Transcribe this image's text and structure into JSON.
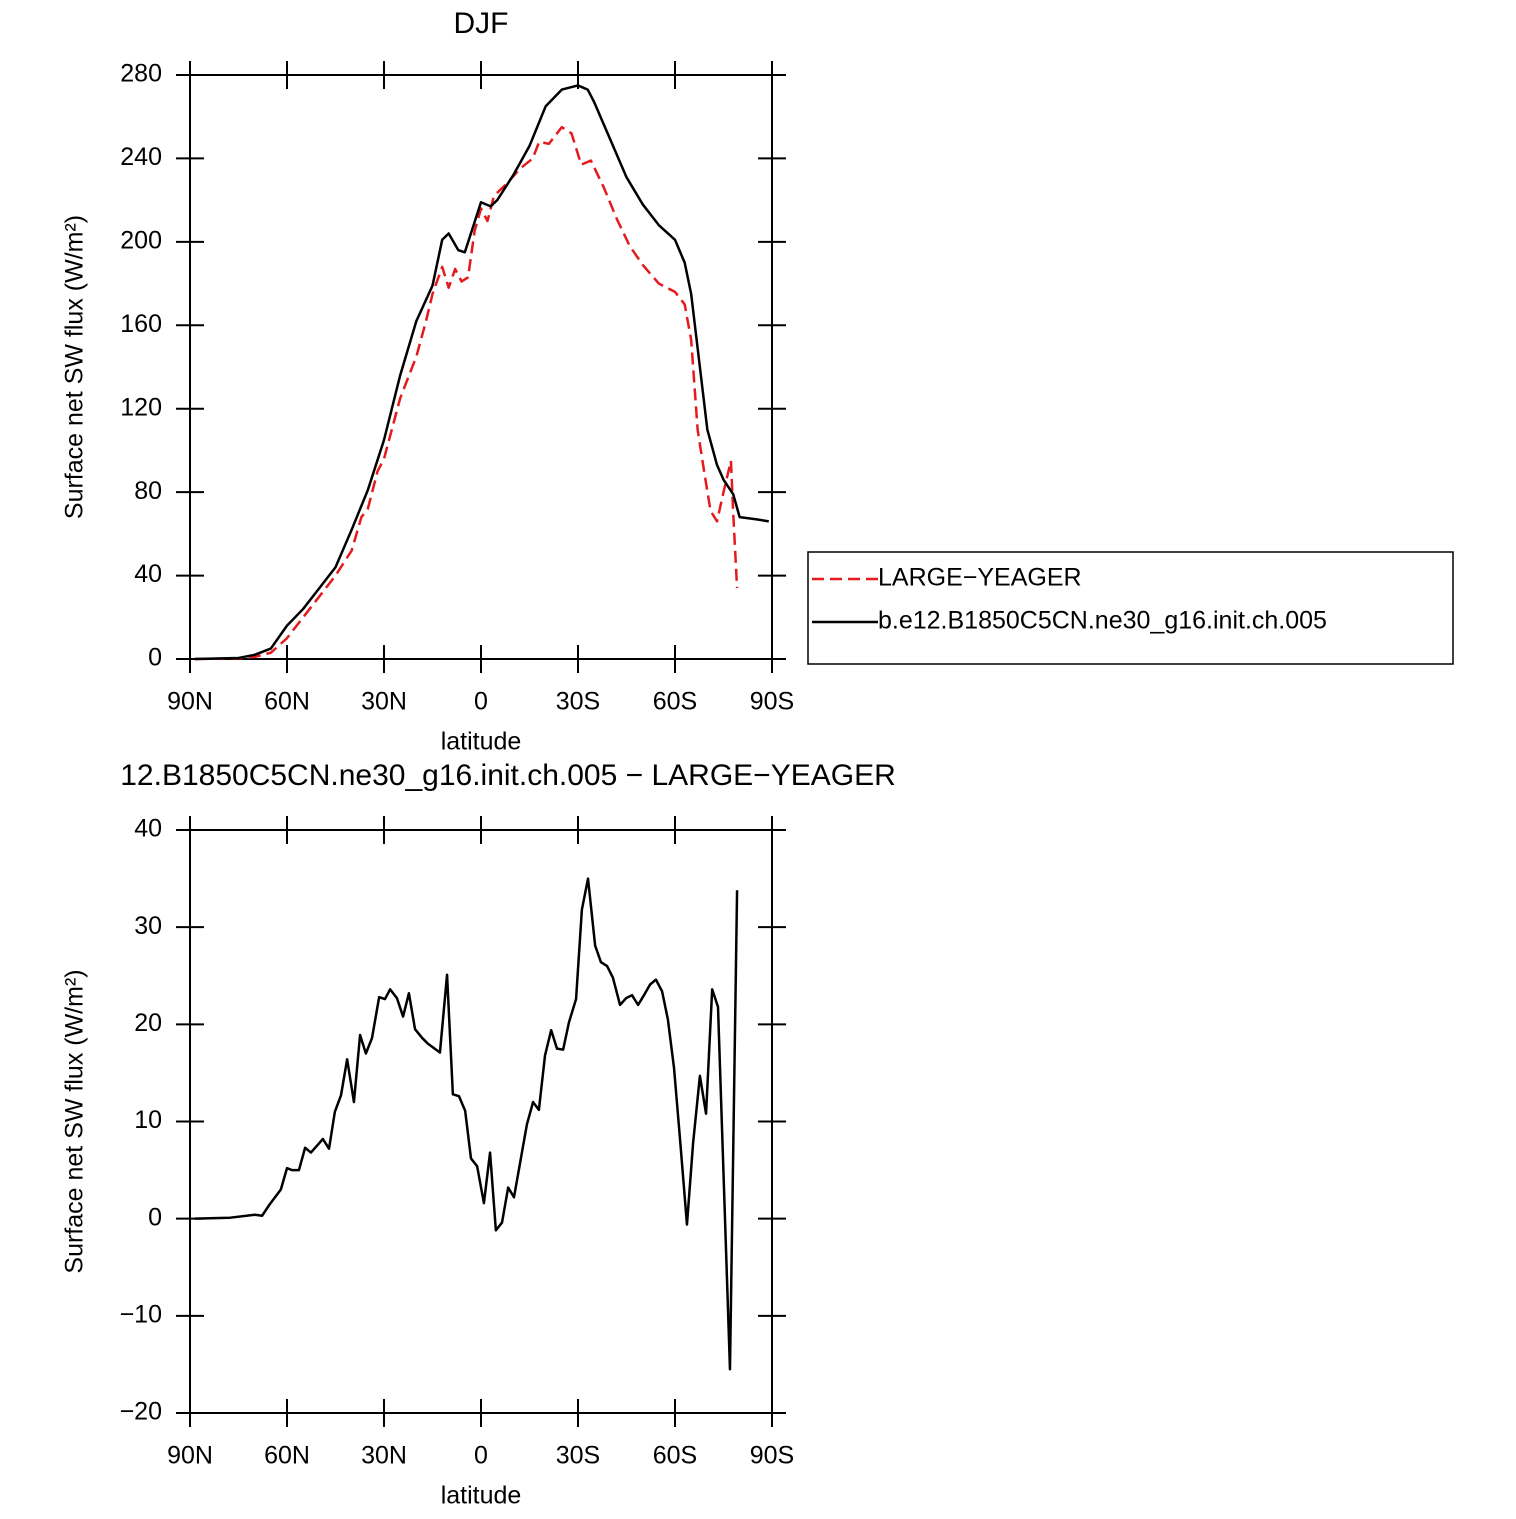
{
  "chart_data": [
    {
      "type": "line",
      "title": "DJF",
      "xlabel": "latitude",
      "ylabel": "Surface net SW flux (W/m²)",
      "xlim": [
        90,
        -90
      ],
      "xticks": [
        {
          "value": 90,
          "label": "90N"
        },
        {
          "value": 60,
          "label": "60N"
        },
        {
          "value": 30,
          "label": "30N"
        },
        0,
        {
          "value": -30,
          "label": "30S"
        },
        {
          "value": -60,
          "label": "60S"
        },
        {
          "value": -90,
          "label": "90S"
        }
      ],
      "ylim": [
        0,
        280
      ],
      "yticks": [
        0,
        40,
        80,
        120,
        160,
        200,
        240,
        280
      ],
      "legend": "right",
      "series": [
        {
          "name": "LARGE−YEAGER",
          "color": "#e41a1c",
          "dashed": true,
          "x": [
            88.5,
            75,
            70,
            65,
            60,
            55,
            50,
            45,
            40,
            37,
            35,
            32,
            30,
            25,
            20,
            17,
            15,
            12,
            10,
            8,
            6,
            4,
            2,
            0,
            -2,
            -4,
            -8,
            -12,
            -16,
            -18,
            -21,
            -25,
            -28,
            -31,
            -34,
            -38,
            -42,
            -46,
            -50,
            -55,
            -60,
            -63,
            -65,
            -67,
            -69,
            -71,
            -73,
            -75,
            -77.3,
            -78,
            -79.2
          ],
          "values": [
            0,
            0.3,
            1,
            3,
            10,
            20,
            30,
            40,
            52,
            68,
            72,
            90,
            96,
            125,
            145,
            162,
            175,
            188,
            178,
            187,
            181,
            183,
            205,
            216,
            210,
            222,
            228,
            235,
            240,
            248,
            247,
            255,
            252,
            237,
            239,
            226,
            211,
            198,
            189,
            180,
            176,
            170,
            153,
            110,
            90,
            71,
            66,
            80,
            95,
            70,
            34
          ]
        },
        {
          "name": "b.e12.B1850C5CN.ne30_g16.init.ch.005",
          "color": "#000000",
          "dashed": false,
          "x": [
            88.5,
            75,
            70,
            65,
            60,
            55,
            50,
            45,
            40,
            35,
            30,
            25,
            20,
            15,
            12,
            10,
            7,
            5,
            0,
            -3,
            -5,
            -10,
            -15,
            -20,
            -25,
            -30,
            -33,
            -35,
            -40,
            -45,
            -50,
            -55,
            -60,
            -63,
            -65,
            -68,
            -70,
            -73,
            -75,
            -78,
            -80,
            -85,
            -89
          ],
          "values": [
            0,
            0.5,
            2,
            5,
            16,
            24,
            34,
            44,
            62,
            81,
            105,
            136,
            162,
            179,
            201,
            204,
            196,
            195,
            219,
            217,
            220,
            232,
            246,
            265,
            273,
            275,
            273,
            267,
            249,
            231,
            218,
            208,
            201,
            190,
            175,
            136,
            110,
            93,
            86,
            79,
            68,
            67,
            66
          ]
        }
      ]
    },
    {
      "type": "line",
      "title": "12.B1850C5CN.ne30_g16.init.ch.005 − LARGE−YEAGER",
      "xlabel": "latitude",
      "ylabel": "Surface net SW flux (W/m²)",
      "xlim": [
        90,
        -90
      ],
      "xticks": [
        {
          "value": 90,
          "label": "90N"
        },
        {
          "value": 60,
          "label": "60N"
        },
        {
          "value": 30,
          "label": "30N"
        },
        0,
        {
          "value": -30,
          "label": "30S"
        },
        {
          "value": -60,
          "label": "60S"
        },
        {
          "value": -90,
          "label": "90S"
        }
      ],
      "ylim": [
        -20,
        40
      ],
      "yticks": [
        {
          "value": -20,
          "label": "−20"
        },
        {
          "value": -10,
          "label": "−10"
        },
        0,
        10,
        20,
        30,
        40
      ],
      "series": [
        {
          "color": "#000000",
          "dashed": false,
          "x": [
            88.5,
            77.6,
            69.9,
            67.7,
            65.3,
            61.9,
            60,
            58.5,
            56.3,
            54.4,
            52.6,
            48.9,
            47,
            45.2,
            43.3,
            41.4,
            39.3,
            37.4,
            35.6,
            33.7,
            31.5,
            29.7,
            28.1,
            26,
            24.1,
            22.3,
            20.4,
            18.2,
            16.4,
            12.7,
            10.5,
            8.7,
            6.8,
            4.9,
            3.1,
            1.2,
            -0.9,
            -2.8,
            -4.6,
            -6.5,
            -8.4,
            -10.2,
            -14.2,
            -16.1,
            -17.9,
            -19.8,
            -21.7,
            -23.5,
            -25.4,
            -27.2,
            -29.4,
            -31.2,
            -33.1,
            -35.3,
            -37.1,
            -39,
            -40.8,
            -43,
            -44.9,
            -46.7,
            -48.6,
            -50.4,
            -52.3,
            -54.1,
            -56,
            -57.8,
            -59.7,
            -61.6,
            -63.7,
            -65.6,
            -67.7,
            -69.6,
            -71.5,
            -73.3,
            -77,
            -79.2
          ],
          "values": [
            0,
            0.1,
            0.4,
            0.3,
            1.5,
            3,
            5.2,
            5,
            5,
            7.3,
            6.8,
            8.2,
            7.2,
            11,
            12.7,
            16.4,
            12,
            18.9,
            17,
            18.6,
            22.8,
            22.6,
            23.6,
            22.7,
            20.8,
            23.2,
            19.5,
            18.6,
            18,
            17.1,
            25.1,
            12.8,
            12.6,
            11.1,
            6.2,
            5.4,
            1.6,
            6.8,
            -1.2,
            -0.4,
            3.2,
            2.2,
            9.7,
            12,
            11.2,
            16.8,
            19.4,
            17.5,
            17.4,
            20.2,
            22.6,
            31.8,
            35,
            28.1,
            26.4,
            26,
            24.8,
            22,
            22.7,
            23,
            22,
            23,
            24.1,
            24.6,
            23.4,
            20.5,
            15.5,
            8,
            -0.6,
            7.8,
            14.7,
            10.8,
            23.6,
            21.8,
            -15.5,
            33.8
          ]
        }
      ]
    }
  ]
}
